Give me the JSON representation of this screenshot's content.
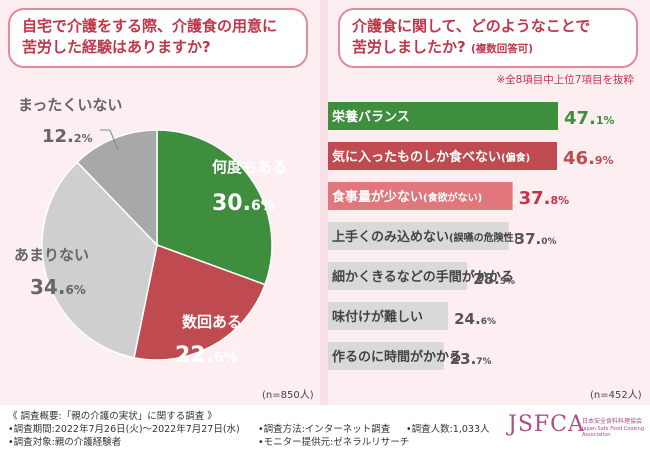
{
  "left": {
    "question": [
      "自宅で介護をする際、介護食の用意に",
      "苦労した経験はありますか?"
    ],
    "n_label": "(n=850人)"
  },
  "right": {
    "question_line1": "介護食に関して、どのようなことで",
    "question_line2": "苦労しましたか?",
    "question_note": "(複数回答可)",
    "exclusion_note": "※全8項目中上位7項目を抜粋",
    "n_label": "(n=452人)"
  },
  "chart_data": [
    {
      "type": "pie",
      "title": "自宅で介護をする際、介護食の用意に苦労した経験はありますか?",
      "slices": [
        {
          "label": "何度もある",
          "value": 30.6,
          "display_int": "30.",
          "display_dec": "6%",
          "color": "#3e8e3e"
        },
        {
          "label": "数回ある",
          "value": 22.6,
          "display_int": "22.",
          "display_dec": "6%",
          "color": "#bf4a4f"
        },
        {
          "label": "あまりない",
          "value": 34.6,
          "display_int": "34.",
          "display_dec": "6%",
          "color": "#cfcfcf"
        },
        {
          "label": "まったくいない",
          "value": 12.2,
          "display_int": "12.",
          "display_dec": "2%",
          "color": "#a8a8a8"
        }
      ]
    },
    {
      "type": "bar",
      "orientation": "horizontal",
      "title": "介護食に関して、どのようなことで苦労しましたか?(複数回答可)",
      "bars": [
        {
          "main": "栄養バランス",
          "sub": "",
          "value": 47.1,
          "display_int": "47.",
          "display_dec": "1%",
          "bar_color": "#3e8e3e",
          "text_color": "#ffffff",
          "val_color": "#3e8e3e"
        },
        {
          "main": "気に入ったものしか食べない",
          "sub": "(偏食)",
          "value": 46.9,
          "display_int": "46.",
          "display_dec": "9%",
          "bar_color": "#bf4a4f",
          "text_color": "#ffffff",
          "val_color": "#bf4a4f"
        },
        {
          "main": "食事量が少ない",
          "sub": "(食欲がない)",
          "value": 37.8,
          "display_int": "37.",
          "display_dec": "8%",
          "bar_color": "#e2767d",
          "text_color": "#ffffff",
          "val_color": "#c0364a"
        },
        {
          "main": "上手くのみ込めない",
          "sub": "(誤嚥の危険性)",
          "value": 37.0,
          "display_int": "37.",
          "display_dec": "0%",
          "bar_color": "#d9d9d9",
          "text_color": "#444444",
          "val_color": "#555555"
        },
        {
          "main": "細かくきるなどの手間がかかる",
          "sub": "",
          "value": 28.5,
          "display_int": "28.",
          "display_dec": "5%",
          "bar_color": "#d9d9d9",
          "text_color": "#444444",
          "val_color": "#555555"
        },
        {
          "main": "味付けが難しい",
          "sub": "",
          "value": 24.6,
          "display_int": "24.",
          "display_dec": "6%",
          "bar_color": "#d9d9d9",
          "text_color": "#444444",
          "val_color": "#555555"
        },
        {
          "main": "作るのに時間がかかる",
          "sub": "",
          "value": 23.7,
          "display_int": "23.",
          "display_dec": "7%",
          "bar_color": "#d9d9d9",
          "text_color": "#444444",
          "val_color": "#555555"
        }
      ]
    }
  ],
  "footer": {
    "title": "《 調査概要:「親の介護の実状」に関する調査 》",
    "period": "•調査期間:2022年7月26日(火)〜2022年7月27日(水)",
    "method": "•調査方法:インターネット調査",
    "count": "•調査人数:1,033人",
    "target": "•調査対象:親の介護経験者",
    "provider": "•モニター提供元:ゼネラルリサーチ"
  },
  "logo": {
    "text": "JSFCA",
    "jp": "日本安全食料料理協会",
    "en": "Japan Safe Food Cooking Association"
  }
}
